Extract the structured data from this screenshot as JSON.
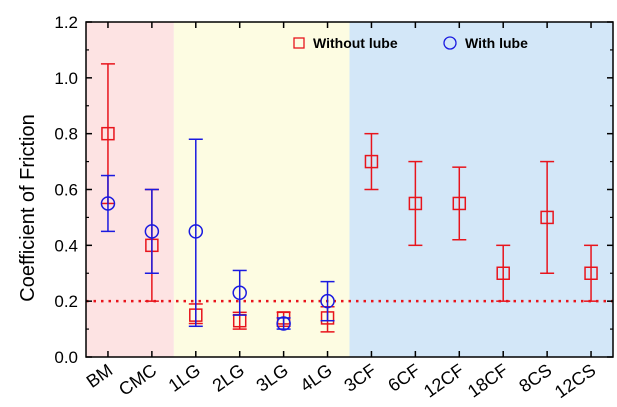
{
  "chart_data": {
    "type": "scatter",
    "ylabel": "Coefficient of Friction",
    "xlabel": "",
    "ylim": [
      0.0,
      1.2
    ],
    "yticks": [
      "0.0",
      "0.2",
      "0.4",
      "0.6",
      "0.8",
      "1.0",
      "1.2"
    ],
    "categories": [
      "BM",
      "CMC",
      "1LG",
      "2LG",
      "3LG",
      "4LG",
      "3CF",
      "6CF",
      "12CF",
      "18CF",
      "8CS",
      "12CS"
    ],
    "reference_line": {
      "y": 0.2,
      "color": "#e8141c",
      "style": "dotted"
    },
    "regions": [
      {
        "from": 0,
        "to": 1,
        "color": "#fde3e3"
      },
      {
        "from": 2,
        "to": 5,
        "color": "#fdfce2"
      },
      {
        "from": 6,
        "to": 11,
        "color": "#d3e7f8"
      }
    ],
    "series": [
      {
        "name": "Without lube",
        "marker": "square",
        "color": "#e8141c",
        "values": [
          0.8,
          0.4,
          0.15,
          0.13,
          0.14,
          0.14,
          0.7,
          0.55,
          0.55,
          0.3,
          0.5,
          0.3
        ],
        "err_low": [
          0.55,
          0.2,
          0.12,
          0.1,
          0.11,
          0.09,
          0.6,
          0.4,
          0.42,
          0.2,
          0.3,
          0.2
        ],
        "err_high": [
          1.05,
          0.6,
          0.19,
          0.16,
          0.16,
          0.18,
          0.8,
          0.7,
          0.68,
          0.4,
          0.7,
          0.4
        ]
      },
      {
        "name": "With lube",
        "marker": "circle",
        "color": "#1a1ae0",
        "values": [
          0.55,
          0.45,
          0.45,
          0.23,
          0.12,
          0.2,
          null,
          null,
          null,
          null,
          null,
          null
        ],
        "err_low": [
          0.45,
          0.3,
          0.11,
          0.15,
          0.1,
          0.13,
          null,
          null,
          null,
          null,
          null,
          null
        ],
        "err_high": [
          0.65,
          0.6,
          0.78,
          0.31,
          0.14,
          0.27,
          null,
          null,
          null,
          null,
          null,
          null
        ]
      }
    ],
    "legend": {
      "placement": "top-center"
    }
  }
}
